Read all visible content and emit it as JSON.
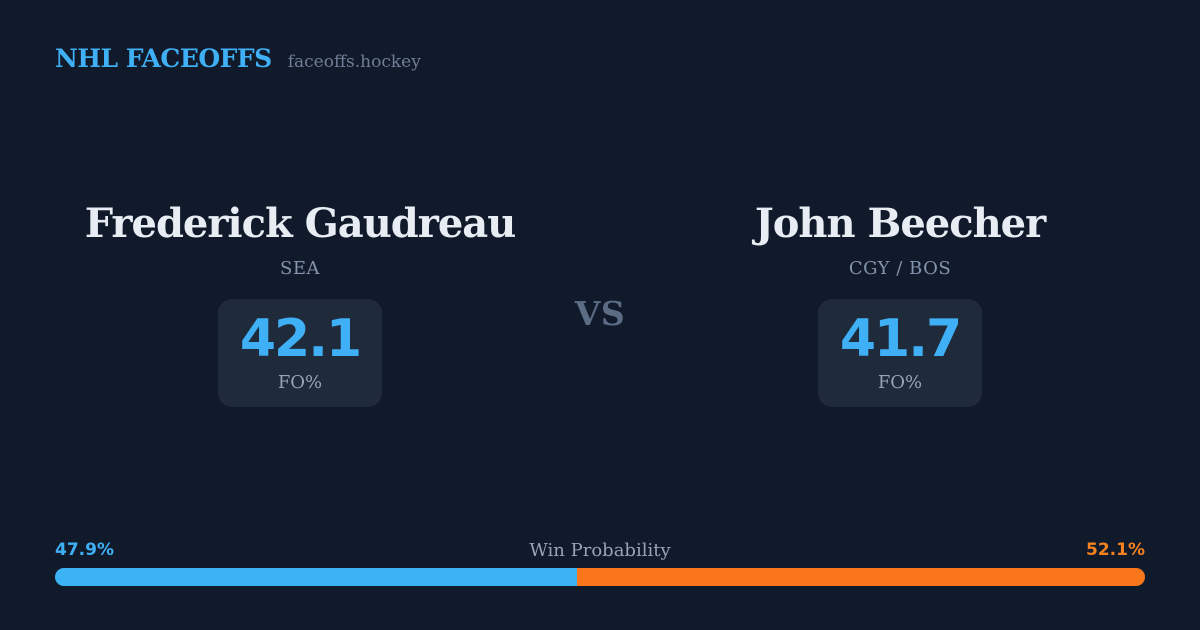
{
  "header": {
    "brand": "NHL FACEOFFS",
    "site": "faceoffs.hockey"
  },
  "matchup": {
    "vs_label": "VS",
    "players": [
      {
        "name": "Frederick Gaudreau",
        "team": "SEA",
        "stat_value": "42.1",
        "stat_label": "FO%"
      },
      {
        "name": "John Beecher",
        "team": "CGY / BOS",
        "stat_value": "41.7",
        "stat_label": "FO%"
      }
    ]
  },
  "win_probability": {
    "title": "Win Probability",
    "left": {
      "label": "47.9%",
      "value": 47.9
    },
    "right": {
      "label": "52.1%",
      "value": 52.1
    }
  },
  "colors": {
    "background": "#111a2b",
    "card_background": "#1f2a3a",
    "accent_blue": "#3bb3f4",
    "accent_orange": "#f9761a",
    "text_primary": "#e8edf4",
    "text_muted": "#97a3b6"
  }
}
